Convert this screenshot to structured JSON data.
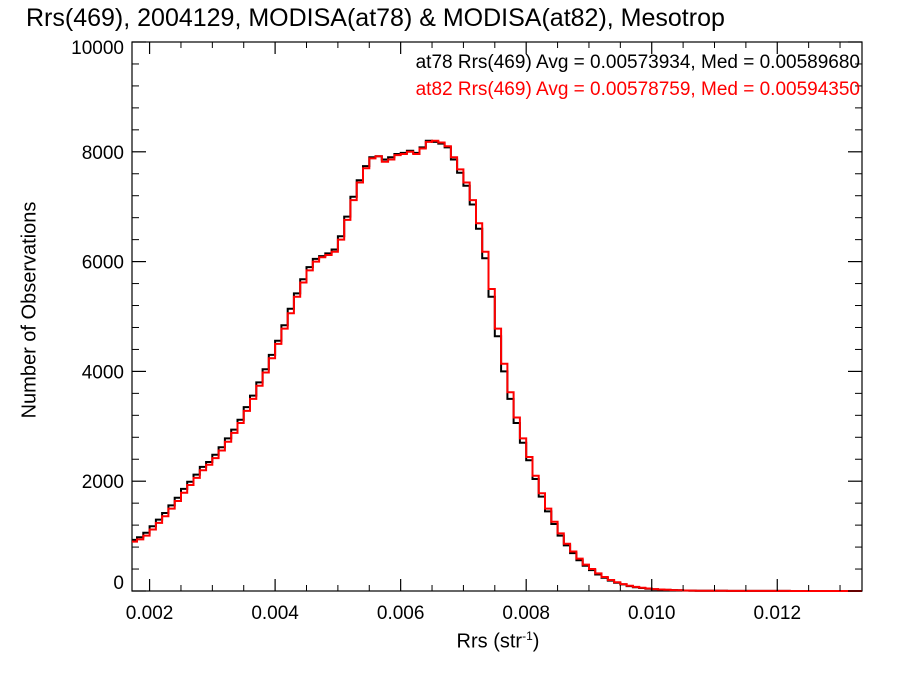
{
  "title": "Rrs(469), 2004129, MODISA(at78) & MODISA(at82), Mesotrop",
  "stats": [
    {
      "text": "at78 Rrs(469) Avg = 0.00573934, Med = 0.00589680",
      "color": "#000000"
    },
    {
      "text": "at82 Rrs(469) Avg = 0.00578759, Med = 0.00594350",
      "color": "#ff0000"
    }
  ],
  "xlabel": "Rrs (str",
  "xlabel_sup": "-1",
  "xlabel_tail": ")",
  "ylabel": "Number of Observations",
  "chart_data": {
    "type": "line",
    "step": true,
    "xlim": [
      0.00172,
      0.01335
    ],
    "ylim": [
      0,
      10000
    ],
    "xticks": [
      0.002,
      0.004,
      0.006,
      0.008,
      0.01,
      0.012
    ],
    "xtick_labels": [
      "0.002",
      "0.004",
      "0.006",
      "0.008",
      "0.010",
      "0.012"
    ],
    "yticks": [
      0,
      2000,
      4000,
      6000,
      8000,
      10000
    ],
    "ytick_labels": [
      "0",
      "2000",
      "4000",
      "6000",
      "8000",
      "10000"
    ],
    "series": [
      {
        "name": "at78",
        "color": "#000000",
        "x": [
          0.00172,
          0.0018,
          0.0019,
          0.002,
          0.0021,
          0.0022,
          0.0023,
          0.0024,
          0.0025,
          0.0026,
          0.0027,
          0.0028,
          0.0029,
          0.003,
          0.0031,
          0.0032,
          0.0033,
          0.0034,
          0.0035,
          0.0036,
          0.0037,
          0.0038,
          0.0039,
          0.004,
          0.0041,
          0.0042,
          0.0043,
          0.0044,
          0.0045,
          0.0046,
          0.0047,
          0.0048,
          0.0049,
          0.005,
          0.0051,
          0.0052,
          0.0053,
          0.0054,
          0.0055,
          0.0056,
          0.0057,
          0.0058,
          0.0059,
          0.006,
          0.0061,
          0.0062,
          0.0063,
          0.0064,
          0.0065,
          0.0066,
          0.0067,
          0.0068,
          0.0069,
          0.007,
          0.0071,
          0.0072,
          0.0073,
          0.0074,
          0.0075,
          0.0076,
          0.0077,
          0.0078,
          0.0079,
          0.008,
          0.0081,
          0.0082,
          0.0083,
          0.0084,
          0.0085,
          0.0086,
          0.0087,
          0.0088,
          0.0089,
          0.009,
          0.0091,
          0.0092,
          0.0093,
          0.0094,
          0.0095,
          0.0096,
          0.0097,
          0.0098,
          0.0099,
          0.01,
          0.0101,
          0.0102,
          0.0103,
          0.0104,
          0.0105,
          0.0106,
          0.0107,
          0.0108,
          0.0109,
          0.011,
          0.0112,
          0.0114,
          0.0116,
          0.0118,
          0.012,
          0.0122,
          0.0124,
          0.0126,
          0.0128,
          0.013,
          0.0132,
          0.01335
        ],
        "y": [
          930,
          980,
          1060,
          1180,
          1300,
          1420,
          1560,
          1700,
          1860,
          1990,
          2120,
          2260,
          2350,
          2480,
          2620,
          2780,
          2940,
          3120,
          3350,
          3560,
          3800,
          4040,
          4300,
          4560,
          4840,
          5140,
          5420,
          5680,
          5900,
          6050,
          6100,
          6150,
          6220,
          6460,
          6820,
          7180,
          7480,
          7740,
          7900,
          7920,
          7860,
          7900,
          7960,
          7980,
          8020,
          7980,
          8080,
          8200,
          8180,
          8150,
          8080,
          7860,
          7620,
          7380,
          7040,
          6600,
          6060,
          5360,
          4640,
          4000,
          3500,
          3060,
          2700,
          2380,
          2040,
          1720,
          1450,
          1220,
          1010,
          830,
          690,
          560,
          460,
          380,
          300,
          240,
          190,
          150,
          120,
          90,
          70,
          55,
          42,
          32,
          25,
          20,
          16,
          13,
          10,
          8,
          6,
          5,
          4,
          3,
          2,
          2,
          1,
          1,
          1,
          0,
          0,
          0,
          0,
          0,
          0,
          0
        ]
      },
      {
        "name": "at82",
        "color": "#ff0000",
        "x": [
          0.00172,
          0.0018,
          0.0019,
          0.002,
          0.0021,
          0.0022,
          0.0023,
          0.0024,
          0.0025,
          0.0026,
          0.0027,
          0.0028,
          0.0029,
          0.003,
          0.0031,
          0.0032,
          0.0033,
          0.0034,
          0.0035,
          0.0036,
          0.0037,
          0.0038,
          0.0039,
          0.004,
          0.0041,
          0.0042,
          0.0043,
          0.0044,
          0.0045,
          0.0046,
          0.0047,
          0.0048,
          0.0049,
          0.005,
          0.0051,
          0.0052,
          0.0053,
          0.0054,
          0.0055,
          0.0056,
          0.0057,
          0.0058,
          0.0059,
          0.006,
          0.0061,
          0.0062,
          0.0063,
          0.0064,
          0.0065,
          0.0066,
          0.0067,
          0.0068,
          0.0069,
          0.007,
          0.0071,
          0.0072,
          0.0073,
          0.0074,
          0.0075,
          0.0076,
          0.0077,
          0.0078,
          0.0079,
          0.008,
          0.0081,
          0.0082,
          0.0083,
          0.0084,
          0.0085,
          0.0086,
          0.0087,
          0.0088,
          0.0089,
          0.009,
          0.0091,
          0.0092,
          0.0093,
          0.0094,
          0.0095,
          0.0096,
          0.0097,
          0.0098,
          0.0099,
          0.01,
          0.0101,
          0.0102,
          0.0103,
          0.0104,
          0.0105,
          0.0106,
          0.0107,
          0.0108,
          0.0109,
          0.011,
          0.0112,
          0.0114,
          0.0116,
          0.0118,
          0.012,
          0.0122,
          0.0124,
          0.0126,
          0.0128,
          0.013,
          0.0132,
          0.01335
        ],
        "y": [
          900,
          940,
          1010,
          1120,
          1240,
          1360,
          1500,
          1640,
          1790,
          1930,
          2060,
          2200,
          2300,
          2420,
          2560,
          2720,
          2880,
          3060,
          3280,
          3500,
          3740,
          3980,
          4240,
          4500,
          4780,
          5060,
          5360,
          5620,
          5840,
          6000,
          6080,
          6120,
          6180,
          6400,
          6760,
          7120,
          7440,
          7700,
          7880,
          7920,
          7820,
          7860,
          7940,
          7960,
          8000,
          7960,
          8060,
          8180,
          8200,
          8170,
          8100,
          7900,
          7680,
          7440,
          7120,
          6700,
          6180,
          5500,
          4780,
          4140,
          3620,
          3160,
          2780,
          2440,
          2100,
          1780,
          1500,
          1260,
          1050,
          860,
          720,
          590,
          480,
          400,
          320,
          255,
          200,
          160,
          125,
          95,
          75,
          58,
          45,
          35,
          27,
          21,
          17,
          13,
          10,
          8,
          6,
          5,
          4,
          3,
          2,
          2,
          1,
          1,
          1,
          0,
          0,
          0,
          0,
          0,
          0,
          0
        ]
      }
    ]
  }
}
